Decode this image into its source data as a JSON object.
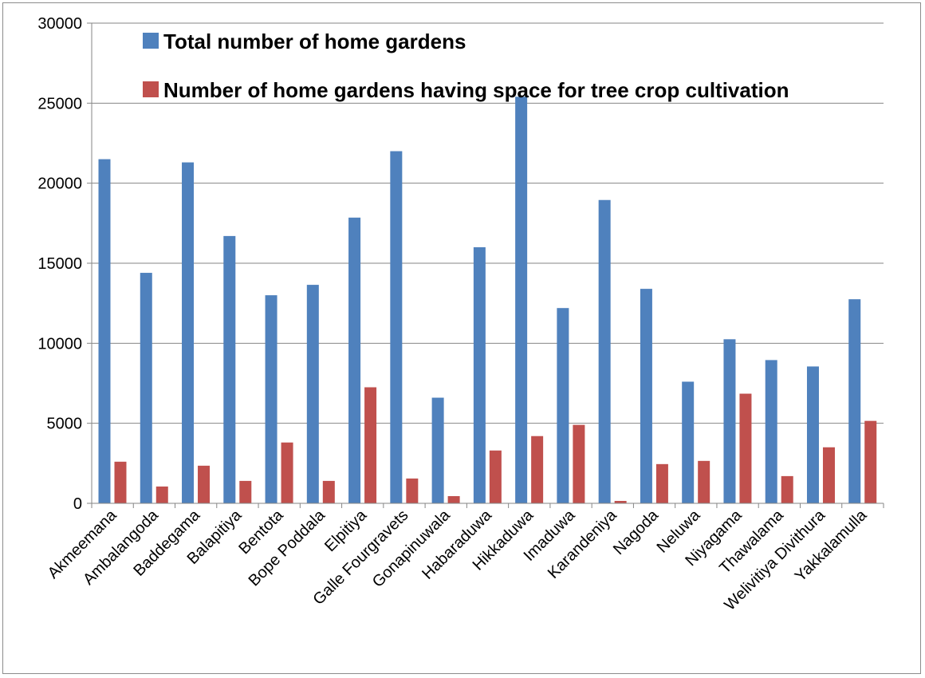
{
  "chart_data": {
    "type": "bar",
    "title": "",
    "xlabel": "",
    "ylabel": "",
    "ylim": [
      0,
      30000
    ],
    "yticks": [
      0,
      5000,
      10000,
      15000,
      20000,
      25000,
      30000
    ],
    "ytick_labels": [
      "0",
      "5000",
      "10000",
      "15000",
      "20000",
      "25000",
      "30000"
    ],
    "grid": true,
    "legend_position": "top",
    "categories": [
      "Akmeemana",
      "Ambalangoda",
      "Baddegama",
      "Balapitiya",
      "Bentota",
      "Bope Poddala",
      "Elpitiya",
      "Galle Fourgravets",
      "Gonapinuwala",
      "Habaraduwa",
      "Hikkaduwa",
      "Imaduwa",
      "Karandeniya",
      "Nagoda",
      "Neluwa",
      "Niyagama",
      "Thawalama",
      "Welivitiya Divithura",
      "Yakkalamulla"
    ],
    "series": [
      {
        "name": "Total number of home gardens",
        "color": "#4f81bd",
        "values": [
          21500,
          14400,
          21300,
          16700,
          13000,
          13650,
          17850,
          22000,
          6600,
          16000,
          25400,
          12200,
          18950,
          13400,
          7600,
          10250,
          8950,
          8550,
          12750
        ]
      },
      {
        "name": "Number of home gardens having space for tree crop cultivation",
        "color": "#c0504d",
        "values": [
          2600,
          1050,
          2350,
          1400,
          3800,
          1400,
          7250,
          1550,
          450,
          3300,
          4200,
          4900,
          150,
          2450,
          2650,
          6850,
          1700,
          3500,
          5150
        ]
      }
    ]
  }
}
